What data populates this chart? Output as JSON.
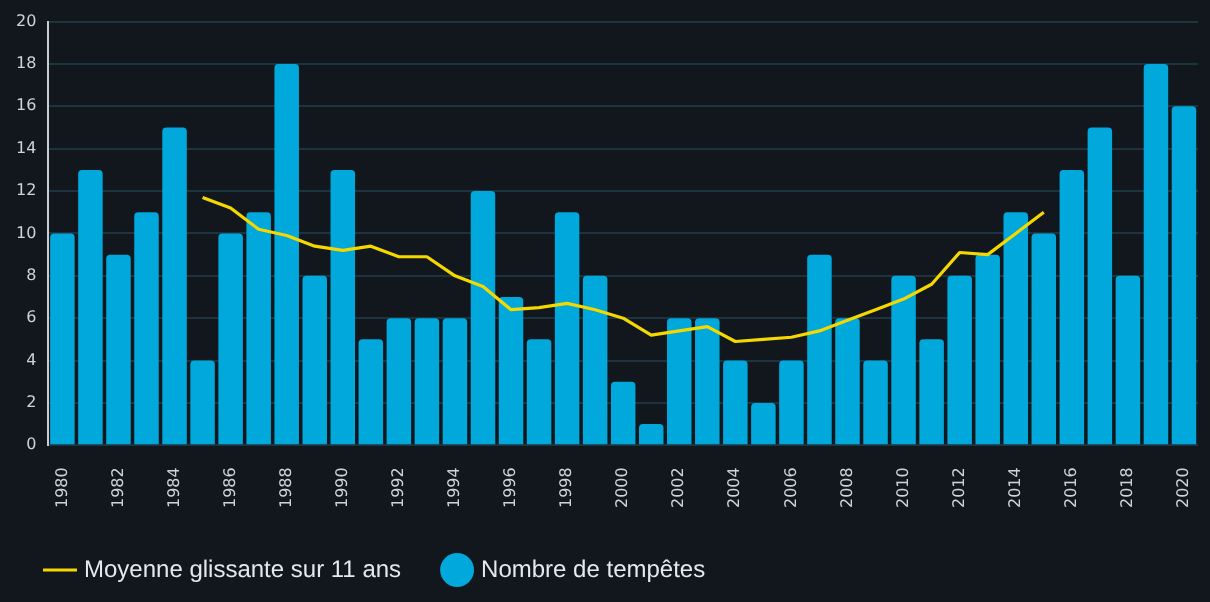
{
  "chart_data": {
    "type": "bar",
    "categories": [
      "1980",
      null,
      "1982",
      null,
      "1984",
      null,
      "1986",
      null,
      "1988",
      null,
      "1990",
      null,
      "1992",
      null,
      "1994",
      null,
      "1996",
      null,
      "1998",
      null,
      "2000",
      null,
      "2002",
      null,
      "2004",
      null,
      "2006",
      null,
      "2008",
      null,
      "2010",
      null,
      "2012",
      null,
      "2014",
      null,
      "2016",
      null,
      "2018",
      null,
      "2020"
    ],
    "series": [
      {
        "name": "Nombre de tempêtes",
        "color": "#00a8dc",
        "values": [
          10,
          13,
          9,
          11,
          15,
          4,
          10,
          11,
          18,
          8,
          13,
          5,
          6,
          6,
          6,
          12,
          7,
          5,
          11,
          8,
          3,
          1,
          6,
          6,
          4,
          2,
          4,
          9,
          6,
          4,
          8,
          5,
          8,
          9,
          11,
          10,
          13,
          15,
          8,
          18,
          16
        ]
      },
      {
        "name": "Moyenne glissante sur 11 ans",
        "type": "line",
        "color": "#f5d800",
        "values": [
          null,
          null,
          null,
          null,
          null,
          11.7,
          11.2,
          10.2,
          9.9,
          9.4,
          9.2,
          9.4,
          8.9,
          8.9,
          8.0,
          7.5,
          6.4,
          6.5,
          6.7,
          6.4,
          6.0,
          5.2,
          5.4,
          5.6,
          4.9,
          5.0,
          5.1,
          5.4,
          5.9,
          6.4,
          6.9,
          7.6,
          9.1,
          9.0,
          10.0,
          11.0,
          null,
          null,
          null,
          null,
          null
        ]
      }
    ],
    "ylim": [
      0,
      20
    ],
    "yticks": [
      0,
      2,
      4,
      6,
      8,
      10,
      12,
      14,
      16,
      18,
      20
    ],
    "grid": "y",
    "legend": "bottom",
    "marker": "none"
  }
}
